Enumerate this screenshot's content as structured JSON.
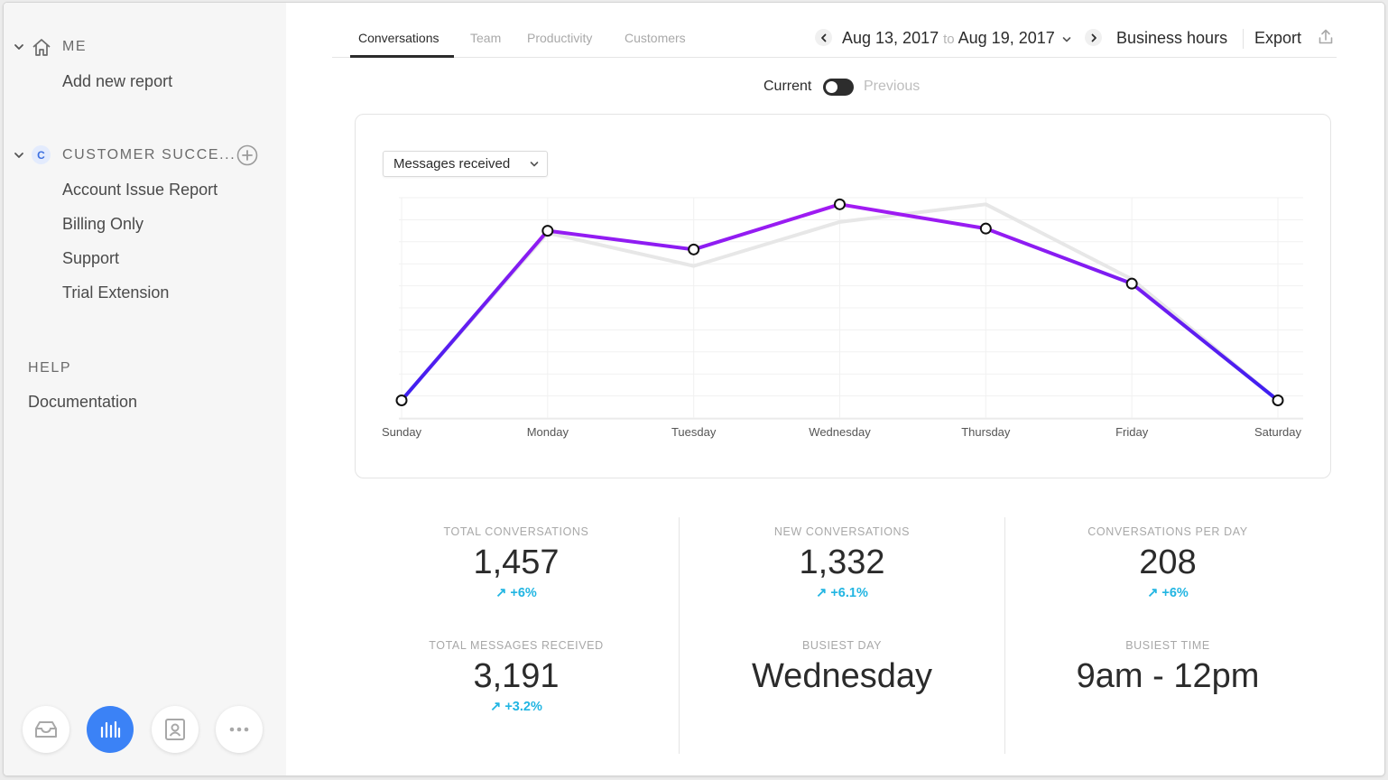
{
  "sidebar": {
    "me": {
      "title": "ME",
      "icon": "home-icon",
      "items": [
        "Add new report"
      ]
    },
    "customer_success": {
      "badge": "C",
      "title": "CUSTOMER SUCCE...",
      "items": [
        "Account Issue Report",
        "Billing Only",
        "Support",
        "Trial Extension"
      ]
    },
    "help": {
      "title": "HELP",
      "items": [
        "Documentation"
      ]
    },
    "dock": [
      "inbox-icon",
      "reports-icon",
      "contacts-icon",
      "more-icon"
    ]
  },
  "tabs": [
    "Conversations",
    "Team",
    "Productivity",
    "Customers"
  ],
  "active_tab": "Conversations",
  "date_range": {
    "from": "Aug 13, 2017",
    "to_word": "to",
    "to": "Aug 19, 2017"
  },
  "business_hours": "Business hours",
  "export": "Export",
  "toggle": {
    "current": "Current",
    "previous": "Previous",
    "state": "current"
  },
  "metric_select": "Messages received",
  "colors": {
    "accent": "#3b82f6",
    "line_start": "#3b1ff0",
    "line_end": "#a31bf2",
    "previous": "#e7e7e7",
    "delta": "#21b5e2"
  },
  "chart_data": {
    "type": "line",
    "categories": [
      "Sunday",
      "Monday",
      "Tuesday",
      "Wednesday",
      "Thursday",
      "Friday",
      "Saturday"
    ],
    "series": [
      {
        "values": [
          8,
          85,
          76.5,
          97,
          86,
          61,
          8
        ]
      },
      {
        "values": [
          8,
          84,
          69,
          89,
          97,
          63,
          8
        ]
      }
    ],
    "ylim": [
      0,
      100
    ],
    "grid": true
  },
  "stats": {
    "total_conversations": {
      "label": "TOTAL CONVERSATIONS",
      "value": "1,457",
      "delta": "+6%"
    },
    "new_conversations": {
      "label": "NEW CONVERSATIONS",
      "value": "1,332",
      "delta": "+6.1%"
    },
    "conversations_per_day": {
      "label": "CONVERSATIONS PER DAY",
      "value": "208",
      "delta": "+6%"
    },
    "total_messages_received": {
      "label": "TOTAL MESSAGES RECEIVED",
      "value": "3,191",
      "delta": "+3.2%"
    },
    "busiest_day": {
      "label": "BUSIEST DAY",
      "value": "Wednesday"
    },
    "busiest_time": {
      "label": "BUSIEST TIME",
      "value": "9am - 12pm"
    }
  }
}
